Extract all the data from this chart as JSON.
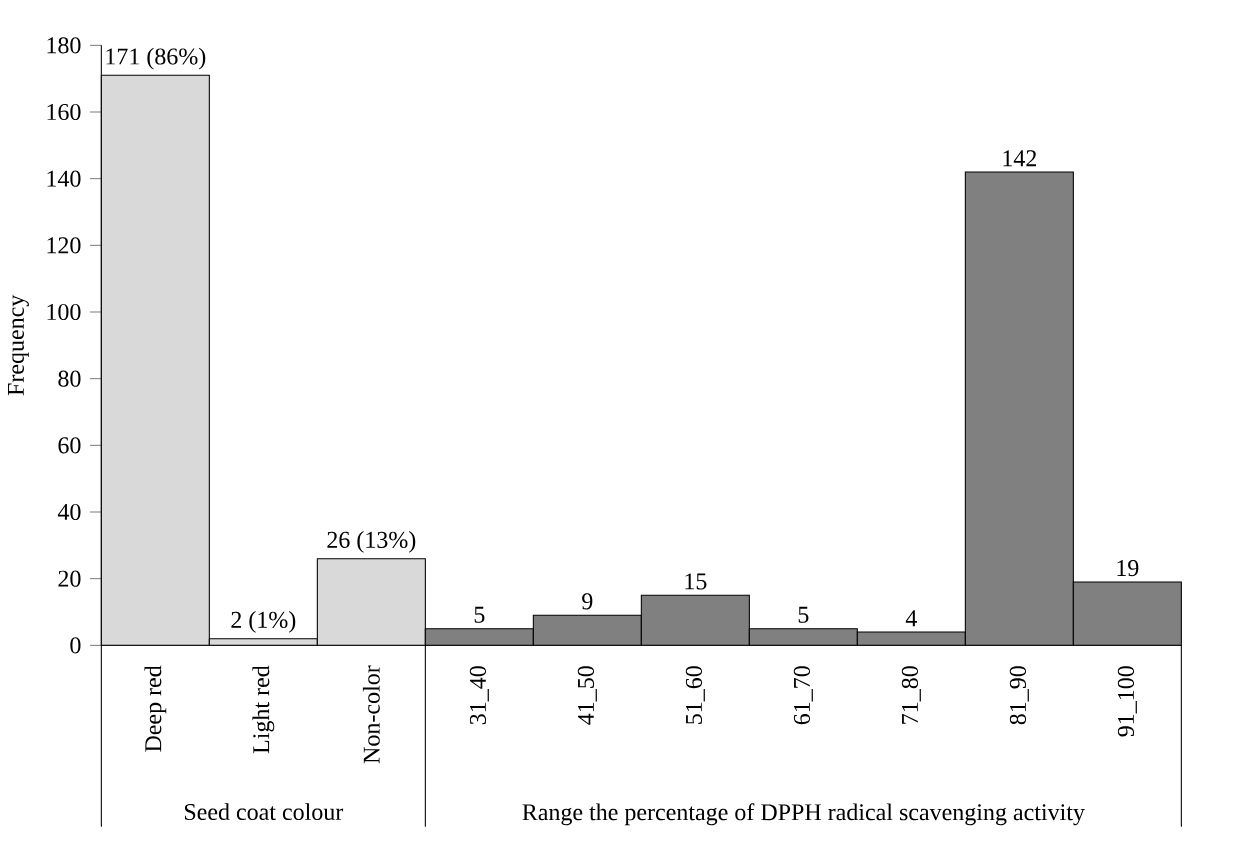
{
  "chart_data": {
    "type": "bar",
    "ylabel": "Frequency",
    "categories": [
      "Deep red",
      "Light red",
      "Non-color",
      "31_40",
      "41_50",
      "51_60",
      "61_70",
      "71_80",
      "81_90",
      "91_100"
    ],
    "values": [
      171,
      2,
      26,
      5,
      9,
      15,
      5,
      4,
      142,
      19
    ],
    "value_labels": [
      "171 (86%)",
      "2 (1%)",
      "26 (13%)",
      "5",
      "9",
      "15",
      "5",
      "4",
      "142",
      "19"
    ],
    "colors": [
      "#d9d9d9",
      "#d9d9d9",
      "#d9d9d9",
      "#808080",
      "#808080",
      "#808080",
      "#808080",
      "#808080",
      "#808080",
      "#808080"
    ],
    "ylim": [
      0,
      180
    ],
    "yticks": [
      0,
      20,
      40,
      60,
      80,
      100,
      120,
      140,
      160,
      180
    ],
    "grid": false,
    "annotations": [
      "Seed coat colour",
      "Range the percentage of DPPH radical scavenging activity"
    ]
  }
}
